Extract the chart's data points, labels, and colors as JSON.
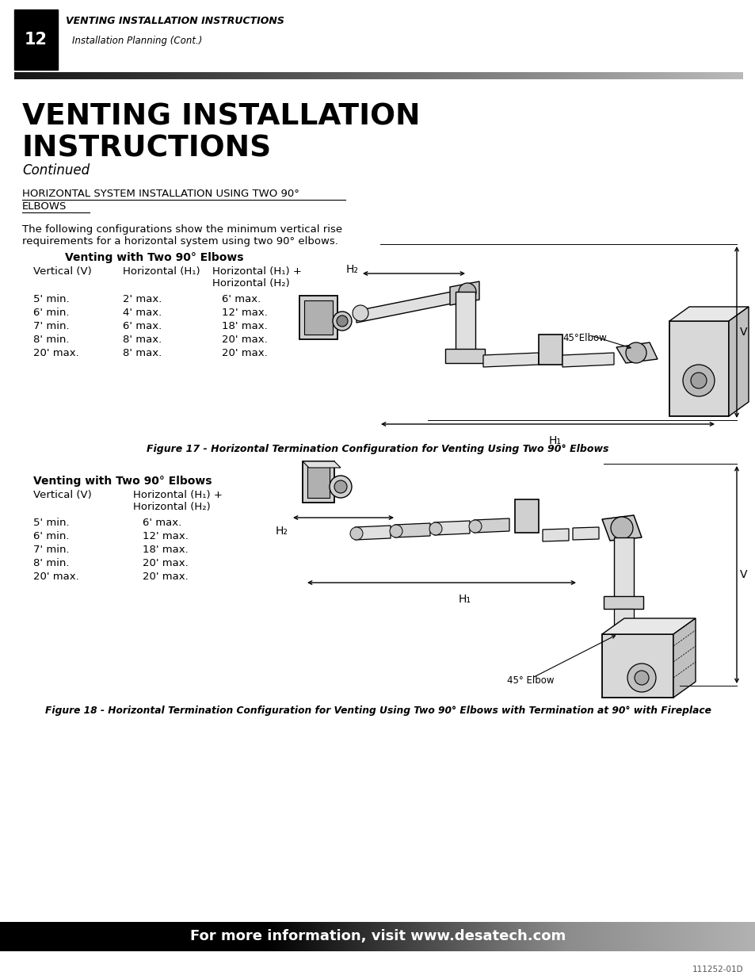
{
  "page_number": "12",
  "header_title": "VENTING INSTALLATION INSTRUCTIONS",
  "header_subtitle": "Installation Planning (Cont.)",
  "main_title_line1": "VENTING INSTALLATION",
  "main_title_line2": "INSTRUCTIONS",
  "main_subtitle": "Continued",
  "section_heading_line1": "HORIZONTAL SYSTEM INSTALLATION USING TWO 90°",
  "section_heading_line2": "ELBOWS",
  "intro_text_line1": "The following configurations show the minimum vertical rise",
  "intro_text_line2": "requirements for a horizontal system using two 90° elbows.",
  "table1_title": "Venting with Two 90° Elbows",
  "table1_col1_header": "Vertical (V)",
  "table1_col2_header": "Horizontal (H₁)",
  "table1_col3_header": "Horizontal (H₁) +",
  "table1_col3_header2": "Horizontal (H₂)",
  "table1_data": [
    [
      "5' min.",
      "2' max.",
      "6' max."
    ],
    [
      "6' min.",
      "4' max.",
      "12' max."
    ],
    [
      "7' min.",
      "6' max.",
      "18' max."
    ],
    [
      "8' min.",
      "8' max.",
      "20' max."
    ],
    [
      "20' max.",
      "8' max.",
      "20' max."
    ]
  ],
  "fig1_caption": "Figure 17 - Horizontal Termination Configuration for Venting Using Two 90° Elbows",
  "table2_title": "Venting with Two 90° Elbows",
  "table2_col1_header": "Vertical (V)",
  "table2_col2_header": "Horizontal (H₁) +",
  "table2_col2_header2": "Horizontal (H₂)",
  "table2_data": [
    [
      "5' min.",
      "6' max."
    ],
    [
      "6' min.",
      "12' max."
    ],
    [
      "7' min.",
      "18' max."
    ],
    [
      "8' min.",
      "20' max."
    ],
    [
      "20' max.",
      "20' max."
    ]
  ],
  "fig2_caption": "Figure 18 - Horizontal Termination Configuration for Venting Using Two 90° Elbows with Termination at 90° with Fireplace",
  "footer_text": "For more information, visit www.desatech.com",
  "doc_number": "111252-01D"
}
